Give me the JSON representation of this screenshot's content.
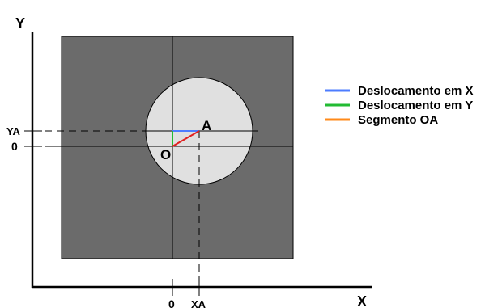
{
  "axes": {
    "x_label": "X",
    "y_label": "Y"
  },
  "ticks": {
    "x_origin": "0",
    "x_a": "XA",
    "y_origin": "0",
    "y_a": "YA"
  },
  "points": {
    "origin": "O",
    "a": "A"
  },
  "legend": [
    {
      "label": "Deslocamento em X",
      "color": "#4d7cff"
    },
    {
      "label": "Deslocamento em Y",
      "color": "#22bb33"
    },
    {
      "label": "Segmento OA",
      "color": "#ff8a1a"
    }
  ],
  "colors": {
    "square_fill": "#6b6b6b",
    "circle_fill": "#e0e0e0",
    "segment_drawn": "#e02020",
    "line": "#000000"
  }
}
